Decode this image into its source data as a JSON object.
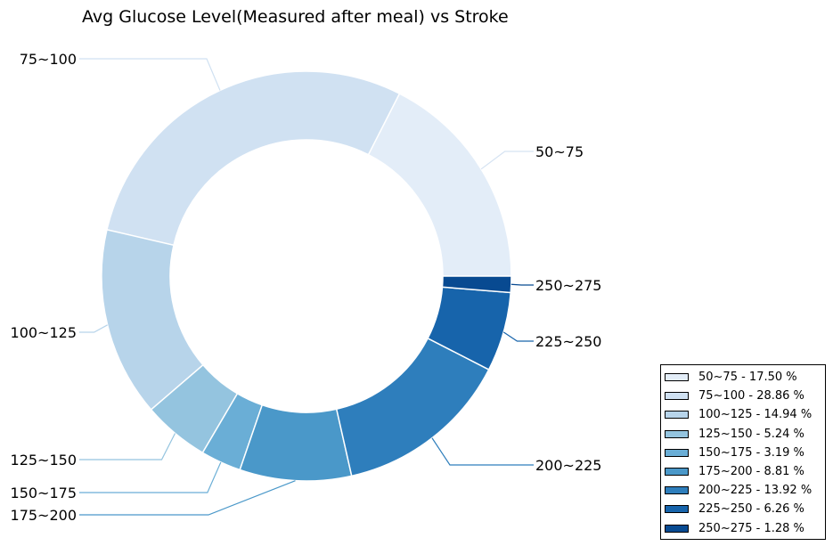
{
  "chart_data": {
    "type": "pie",
    "style": "donut",
    "title": "Avg Glucose Level(Measured after meal) vs Stroke",
    "slices": [
      {
        "label": "50~75",
        "legend": "50~75 - 17.50 %",
        "value": 17.5,
        "color": "#e3edf8"
      },
      {
        "label": "75~100",
        "legend": "75~100 - 28.86 %",
        "value": 28.86,
        "color": "#d0e1f2"
      },
      {
        "label": "100~125",
        "legend": "100~125 - 14.94 %",
        "value": 14.94,
        "color": "#b7d4ea"
      },
      {
        "label": "125~150",
        "legend": "125~150 - 5.24 %",
        "value": 5.24,
        "color": "#94c4df"
      },
      {
        "label": "150~175",
        "legend": "150~175 - 3.19 %",
        "value": 3.19,
        "color": "#6aaed6"
      },
      {
        "label": "175~200",
        "legend": "175~200 - 8.81 %",
        "value": 8.81,
        "color": "#4a98c9"
      },
      {
        "label": "200~225",
        "legend": "200~225 - 13.92 %",
        "value": 13.92,
        "color": "#2e7ebc"
      },
      {
        "label": "225~250",
        "legend": "225~250 - 6.26 %",
        "value": 6.26,
        "color": "#1764ab"
      },
      {
        "label": "250~275",
        "legend": "250~275 - 1.28 %",
        "value": 1.28,
        "color": "#084a91"
      }
    ],
    "legend_position": "lower-right"
  }
}
